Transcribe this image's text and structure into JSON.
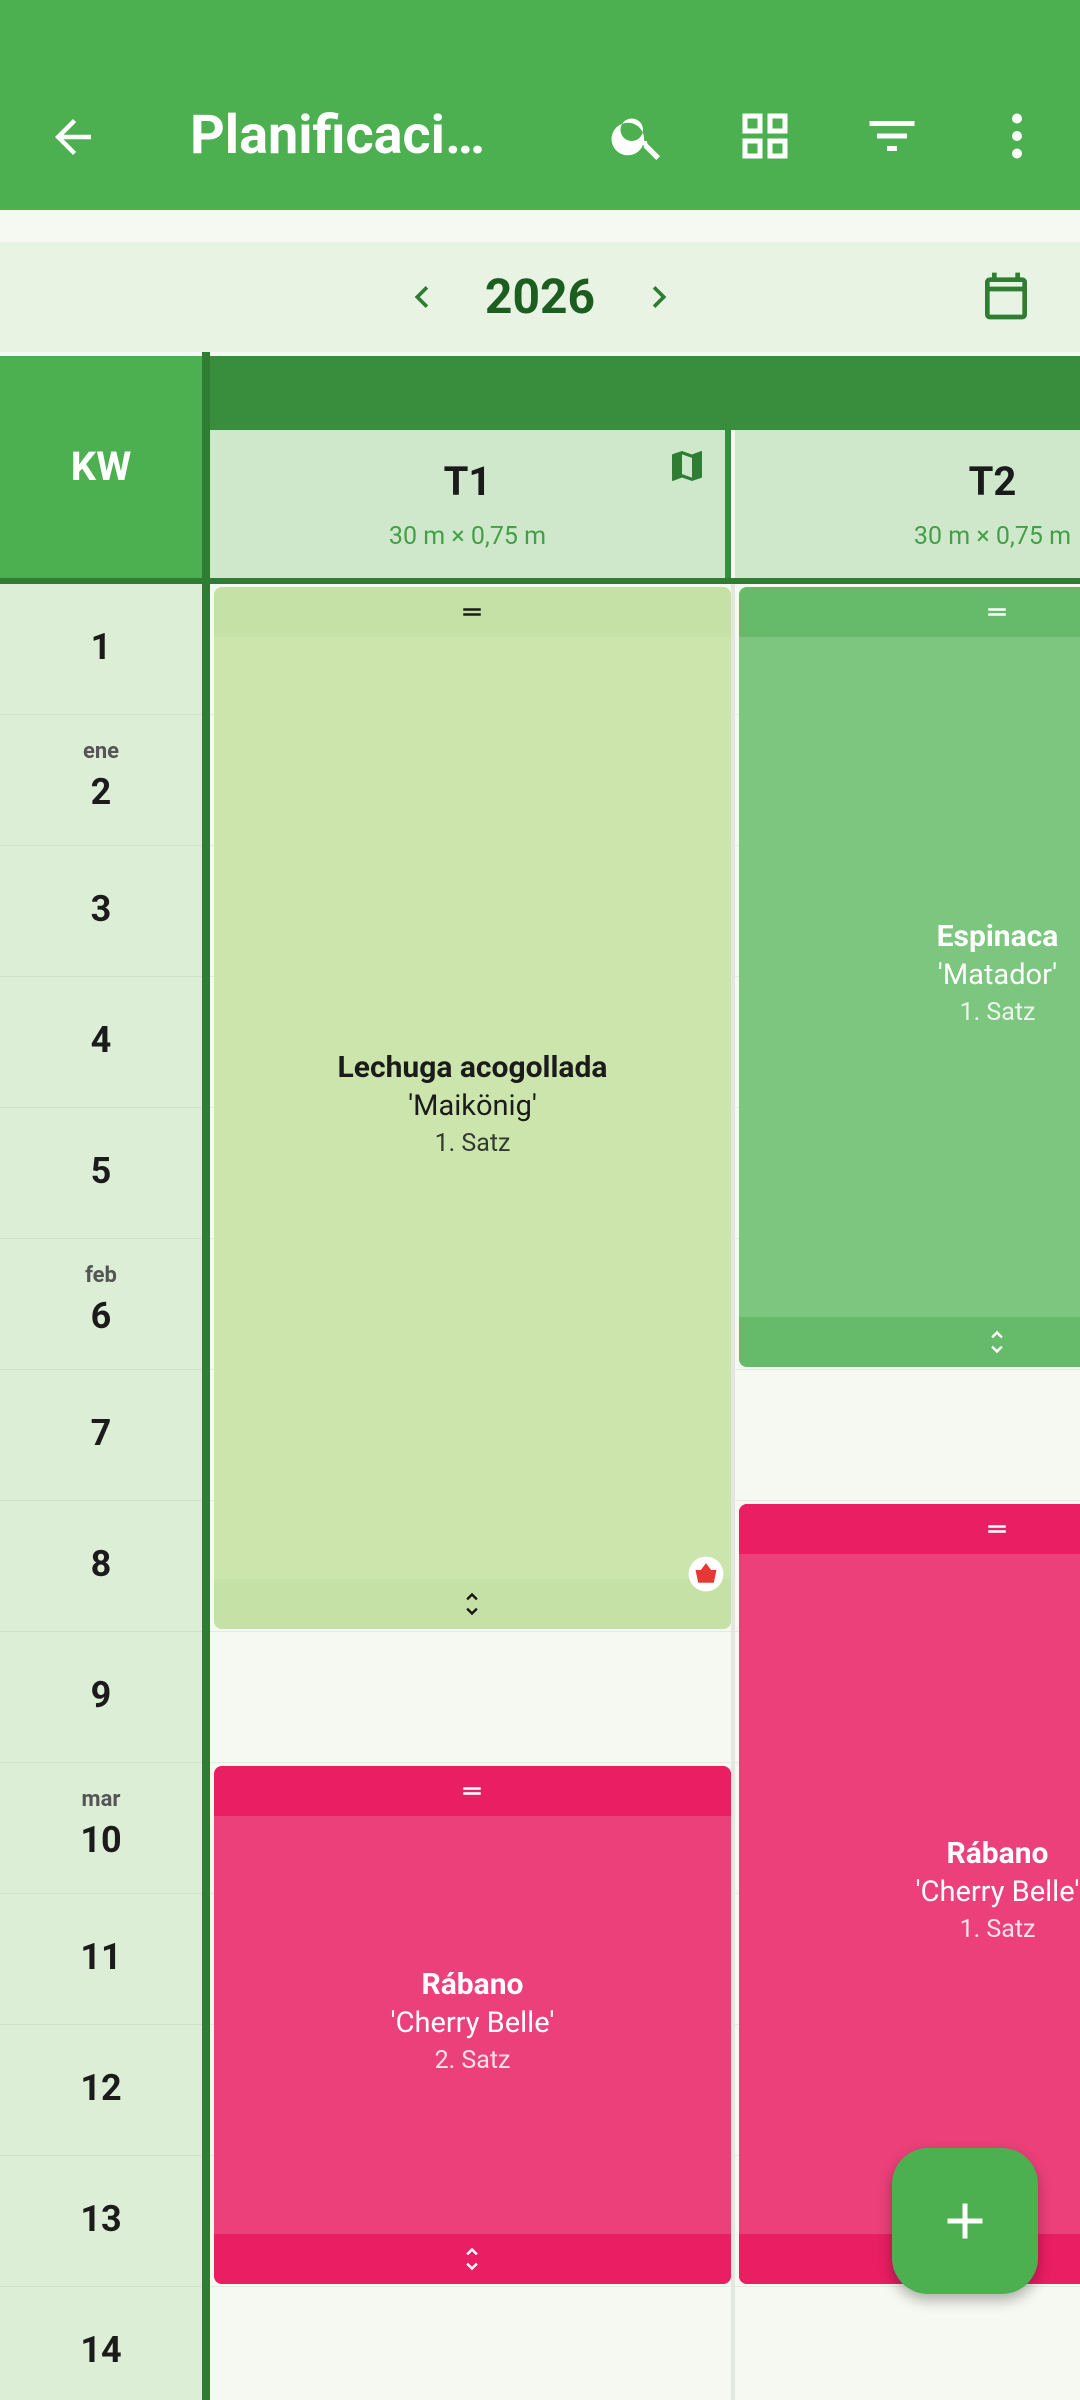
{
  "header": {
    "title": "Planificaci…"
  },
  "year": "2026",
  "kw_label": "KW",
  "beds": [
    {
      "name": "T1",
      "size": "30 m × 0,75 m"
    },
    {
      "name": "T2",
      "size": "30 m × 0,75 m"
    }
  ],
  "weeks": [
    {
      "number": 1
    },
    {
      "number": 2,
      "month": "ene"
    },
    {
      "number": 3
    },
    {
      "number": 4
    },
    {
      "number": 5
    },
    {
      "number": 6,
      "month": "feb"
    },
    {
      "number": 7
    },
    {
      "number": 8
    },
    {
      "number": 9
    },
    {
      "number": 10,
      "month": "mar"
    },
    {
      "number": 11
    },
    {
      "number": 12
    },
    {
      "number": 13
    },
    {
      "number": 14
    }
  ],
  "plantings": [
    {
      "crop": "Lechuga acogollada",
      "variety": "'Maikönig'",
      "batch": "1. Satz"
    },
    {
      "crop": "Espinaca",
      "variety": "'Matador'",
      "batch": "1. Satz"
    },
    {
      "crop": "Rábano",
      "variety": "'Cherry Belle'",
      "batch": "1. Satz"
    },
    {
      "crop": "Rábano",
      "variety": "'Cherry Belle'",
      "batch": "2. Satz"
    }
  ]
}
